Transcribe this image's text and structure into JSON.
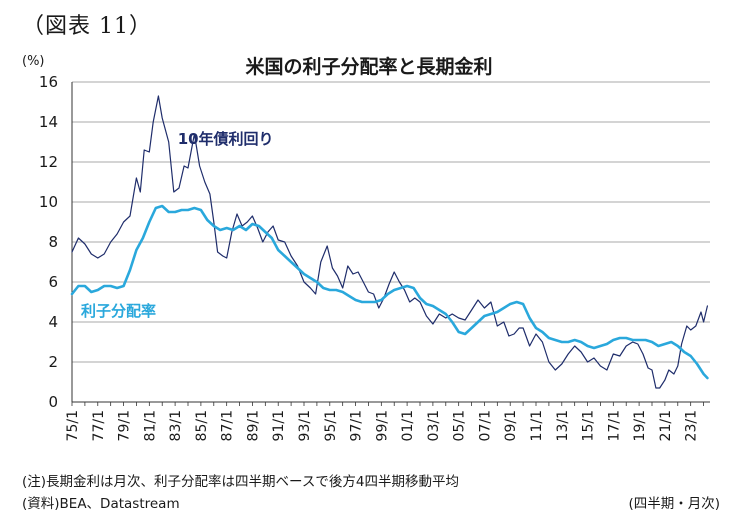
{
  "figure_label": "（図表 11）",
  "notes": {
    "note": "(注)長期金利は月次、利子分配率は四半期ベースで後方4四半期移動平均",
    "source": "(資料)BEA、Datastream",
    "frequency": "(四半期・月次)"
  },
  "chart_data": {
    "type": "line",
    "title": "米国の利子分配率と長期金利",
    "ylabel": "(%)",
    "xlabel": "",
    "ylim": [
      0,
      16
    ],
    "xlim": [
      1975,
      2024.5
    ],
    "yticks": [
      "0",
      "2",
      "4",
      "6",
      "8",
      "10",
      "12",
      "14",
      "16"
    ],
    "xticks": [
      "75/1",
      "77/1",
      "79/1",
      "81/1",
      "83/1",
      "85/1",
      "87/1",
      "89/1",
      "91/1",
      "93/1",
      "95/1",
      "97/1",
      "99/1",
      "01/1",
      "03/1",
      "05/1",
      "07/1",
      "09/1",
      "11/1",
      "13/1",
      "15/1",
      "17/1",
      "19/1",
      "21/1",
      "23/1"
    ],
    "grid": "horizontal",
    "series": [
      {
        "name": "10年債利回り",
        "color": "#1f2d6b",
        "x": [
          1975.0,
          1975.5,
          1976.0,
          1976.5,
          1977.0,
          1977.5,
          1978.0,
          1978.5,
          1979.0,
          1979.5,
          1980.0,
          1980.3,
          1980.6,
          1981.0,
          1981.3,
          1981.7,
          1982.0,
          1982.5,
          1982.9,
          1983.3,
          1983.7,
          1984.0,
          1984.5,
          1984.9,
          1985.3,
          1985.7,
          1986.0,
          1986.3,
          1986.7,
          1987.0,
          1987.4,
          1987.8,
          1988.2,
          1988.6,
          1989.0,
          1989.4,
          1989.8,
          1990.2,
          1990.6,
          1991.0,
          1991.5,
          1992.0,
          1992.5,
          1993.0,
          1993.5,
          1993.9,
          1994.3,
          1994.8,
          1995.2,
          1995.6,
          1996.0,
          1996.4,
          1996.8,
          1997.2,
          1997.6,
          1998.0,
          1998.4,
          1998.8,
          1999.2,
          1999.6,
          2000.0,
          2000.4,
          2000.8,
          2001.2,
          2001.6,
          2002.0,
          2002.5,
          2003.0,
          2003.5,
          2004.0,
          2004.5,
          2005.0,
          2005.5,
          2006.0,
          2006.5,
          2007.0,
          2007.5,
          2008.0,
          2008.5,
          2008.9,
          2009.3,
          2009.7,
          2010.0,
          2010.5,
          2011.0,
          2011.5,
          2012.0,
          2012.5,
          2013.0,
          2013.5,
          2014.0,
          2014.5,
          2015.0,
          2015.5,
          2016.0,
          2016.5,
          2017.0,
          2017.5,
          2018.0,
          2018.5,
          2018.9,
          2019.3,
          2019.7,
          2020.0,
          2020.3,
          2020.6,
          2021.0,
          2021.3,
          2021.7,
          2022.0,
          2022.3,
          2022.7,
          2023.0,
          2023.4,
          2023.8,
          2024.0,
          2024.3
        ],
        "values": [
          7.5,
          8.2,
          7.9,
          7.4,
          7.2,
          7.4,
          8.0,
          8.4,
          9.0,
          9.3,
          11.2,
          10.5,
          12.6,
          12.5,
          14.0,
          15.3,
          14.2,
          13.0,
          10.5,
          10.7,
          11.8,
          11.7,
          13.4,
          11.8,
          11.0,
          10.4,
          9.0,
          7.5,
          7.3,
          7.2,
          8.5,
          9.4,
          8.8,
          9.0,
          9.3,
          8.7,
          8.0,
          8.5,
          8.8,
          8.1,
          8.0,
          7.3,
          6.8,
          6.0,
          5.7,
          5.4,
          7.0,
          7.8,
          6.7,
          6.3,
          5.7,
          6.8,
          6.4,
          6.5,
          6.0,
          5.5,
          5.4,
          4.7,
          5.2,
          5.9,
          6.5,
          6.0,
          5.6,
          5.0,
          5.2,
          5.0,
          4.3,
          3.9,
          4.4,
          4.2,
          4.4,
          4.2,
          4.1,
          4.6,
          5.1,
          4.7,
          5.0,
          3.8,
          4.0,
          3.3,
          3.4,
          3.7,
          3.7,
          2.8,
          3.4,
          3.0,
          2.0,
          1.6,
          1.9,
          2.4,
          2.8,
          2.5,
          2.0,
          2.2,
          1.8,
          1.6,
          2.4,
          2.3,
          2.8,
          3.0,
          2.9,
          2.4,
          1.7,
          1.6,
          0.7,
          0.7,
          1.1,
          1.6,
          1.4,
          1.8,
          2.9,
          3.8,
          3.6,
          3.8,
          4.5,
          4.0,
          4.8
        ]
      },
      {
        "name": "利子分配率",
        "color": "#2aa8dc",
        "x": [
          1975.0,
          1975.5,
          1976.0,
          1976.5,
          1977.0,
          1977.5,
          1978.0,
          1978.5,
          1979.0,
          1979.5,
          1980.0,
          1980.5,
          1981.0,
          1981.5,
          1982.0,
          1982.5,
          1983.0,
          1983.5,
          1984.0,
          1984.5,
          1985.0,
          1985.5,
          1986.0,
          1986.5,
          1987.0,
          1987.5,
          1988.0,
          1988.5,
          1989.0,
          1989.5,
          1990.0,
          1990.5,
          1991.0,
          1991.5,
          1992.0,
          1992.5,
          1993.0,
          1993.5,
          1994.0,
          1994.5,
          1995.0,
          1995.5,
          1996.0,
          1996.5,
          1997.0,
          1997.5,
          1998.0,
          1998.5,
          1999.0,
          1999.5,
          2000.0,
          2000.5,
          2001.0,
          2001.5,
          2002.0,
          2002.5,
          2003.0,
          2003.5,
          2004.0,
          2004.5,
          2005.0,
          2005.5,
          2006.0,
          2006.5,
          2007.0,
          2007.5,
          2008.0,
          2008.5,
          2009.0,
          2009.5,
          2010.0,
          2010.5,
          2011.0,
          2011.5,
          2012.0,
          2012.5,
          2013.0,
          2013.5,
          2014.0,
          2014.5,
          2015.0,
          2015.5,
          2016.0,
          2016.5,
          2017.0,
          2017.5,
          2018.0,
          2018.5,
          2019.0,
          2019.5,
          2020.0,
          2020.5,
          2021.0,
          2021.5,
          2022.0,
          2022.5,
          2023.0,
          2023.5,
          2024.0,
          2024.3
        ],
        "values": [
          5.4,
          5.8,
          5.8,
          5.5,
          5.6,
          5.8,
          5.8,
          5.7,
          5.8,
          6.6,
          7.6,
          8.2,
          9.0,
          9.7,
          9.8,
          9.5,
          9.5,
          9.6,
          9.6,
          9.7,
          9.6,
          9.1,
          8.8,
          8.6,
          8.7,
          8.6,
          8.8,
          8.6,
          8.9,
          8.8,
          8.5,
          8.2,
          7.6,
          7.3,
          7.0,
          6.7,
          6.4,
          6.2,
          6.0,
          5.7,
          5.6,
          5.6,
          5.5,
          5.3,
          5.1,
          5.0,
          5.0,
          5.0,
          5.1,
          5.4,
          5.6,
          5.7,
          5.8,
          5.7,
          5.2,
          4.9,
          4.8,
          4.6,
          4.4,
          4.0,
          3.5,
          3.4,
          3.7,
          4.0,
          4.3,
          4.4,
          4.5,
          4.7,
          4.9,
          5.0,
          4.9,
          4.2,
          3.7,
          3.5,
          3.2,
          3.1,
          3.0,
          3.0,
          3.1,
          3.0,
          2.8,
          2.7,
          2.8,
          2.9,
          3.1,
          3.2,
          3.2,
          3.1,
          3.1,
          3.1,
          3.0,
          2.8,
          2.9,
          3.0,
          2.8,
          2.5,
          2.3,
          1.9,
          1.4,
          1.2
        ]
      }
    ]
  }
}
